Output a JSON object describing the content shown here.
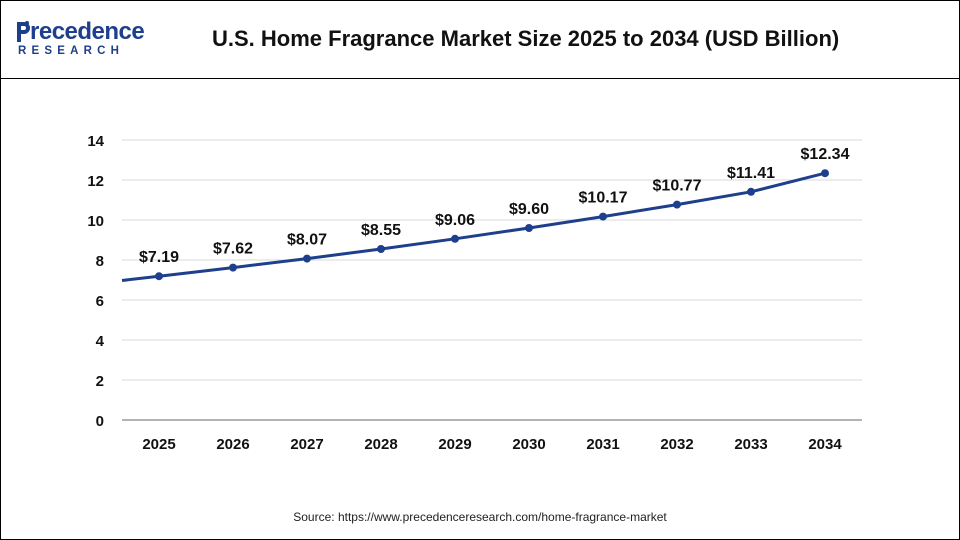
{
  "header": {
    "logo_top": "recedence",
    "logo_bottom": "RESEARCH",
    "title": "U.S. Home Fragrance Market Size 2025 to 2034 (USD Billion)"
  },
  "source": "Source: https://www.precedenceresearch.com/home-fragrance-market",
  "colors": {
    "line": "#1e3f8c",
    "grid": "#d9d9d9",
    "brand": "#1e3f8c"
  },
  "chart_data": {
    "type": "line",
    "title": "U.S. Home Fragrance Market Size 2025 to 2034 (USD Billion)",
    "xlabel": "",
    "ylabel": "",
    "categories": [
      "2025",
      "2026",
      "2027",
      "2028",
      "2029",
      "2030",
      "2031",
      "2032",
      "2033",
      "2034"
    ],
    "values": [
      7.19,
      7.62,
      8.07,
      8.55,
      9.06,
      9.6,
      10.17,
      10.77,
      11.41,
      12.34
    ],
    "data_labels": [
      "$7.19",
      "$7.62",
      "$8.07",
      "$8.55",
      "$9.06",
      "$9.60",
      "$10.17",
      "$10.77",
      "$11.41",
      "$12.34"
    ],
    "y_ticks": [
      "0",
      "2",
      "4",
      "6",
      "8",
      "10",
      "12",
      "14"
    ],
    "ylim": [
      0,
      14
    ],
    "grid": true,
    "legend": "none"
  }
}
